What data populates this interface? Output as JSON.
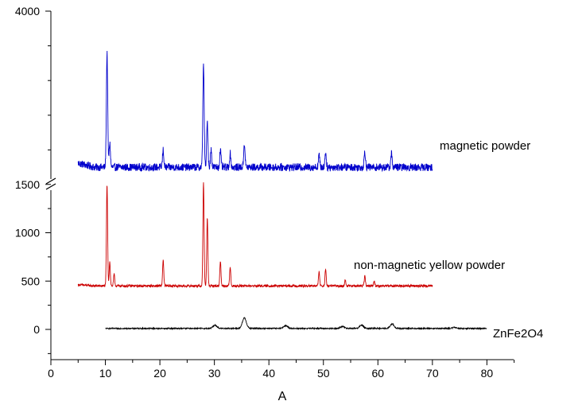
{
  "chart_data": {
    "type": "line",
    "xlabel": "A",
    "xlim": [
      0,
      85
    ],
    "x_ticks": [
      "0",
      "10",
      "20",
      "30",
      "40",
      "50",
      "60",
      "70",
      "80"
    ],
    "y_axis_break": {
      "lower_range": [
        -250,
        1500
      ],
      "upper_range_top": 4000
    },
    "y_ticks": [
      "0",
      "500",
      "1000",
      "1500",
      "4000"
    ],
    "grid": false,
    "legend": "none",
    "series": [
      {
        "name": "magnetic powder",
        "color": "#0000cc",
        "x_range": [
          5,
          70
        ],
        "baseline": 1750,
        "peaks": [
          [
            10.3,
            1650
          ],
          [
            10.8,
            350
          ],
          [
            20.6,
            250
          ],
          [
            28.0,
            1500
          ],
          [
            28.7,
            650
          ],
          [
            29.4,
            250
          ],
          [
            31.1,
            250
          ],
          [
            32.9,
            200
          ],
          [
            35.5,
            350
          ],
          [
            49.2,
            180
          ],
          [
            50.4,
            220
          ],
          [
            57.6,
            230
          ],
          [
            62.5,
            200
          ]
        ]
      },
      {
        "name": "non-magnetic yellow powder",
        "color": "#cc0000",
        "x_range": [
          5,
          70
        ],
        "baseline": 450,
        "peaks": [
          [
            10.3,
            1050
          ],
          [
            10.8,
            250
          ],
          [
            11.6,
            120
          ],
          [
            20.6,
            270
          ],
          [
            28.0,
            1080
          ],
          [
            28.7,
            700
          ],
          [
            31.1,
            260
          ],
          [
            32.9,
            200
          ],
          [
            49.2,
            150
          ],
          [
            50.4,
            170
          ],
          [
            54.0,
            60
          ],
          [
            57.6,
            100
          ],
          [
            59.3,
            50
          ]
        ]
      },
      {
        "name": "ZnFe2O4",
        "color": "#000000",
        "x_range": [
          10,
          80
        ],
        "baseline": 10,
        "peaks": [
          [
            30.1,
            35
          ],
          [
            35.5,
            110
          ],
          [
            43.1,
            30
          ],
          [
            53.5,
            20
          ],
          [
            57.0,
            35
          ],
          [
            62.6,
            45
          ],
          [
            74.0,
            10
          ]
        ]
      }
    ]
  }
}
